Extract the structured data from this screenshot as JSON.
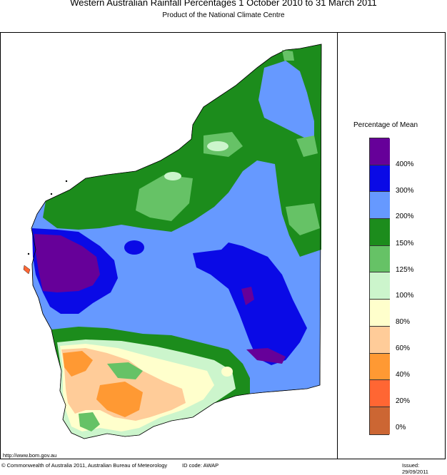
{
  "header": {
    "title": "Western Australian Rainfall Percentages 1 October 2010 to 31 March 2011",
    "subtitle": "Product of the National Climate Centre"
  },
  "legend": {
    "title": "Percentage of Mean",
    "bands": [
      {
        "label": "",
        "color": "#660099"
      },
      {
        "label": "400%",
        "color": "#0a0ae6"
      },
      {
        "label": "300%",
        "color": "#6699ff"
      },
      {
        "label": "200%",
        "color": "#1c8c1c"
      },
      {
        "label": "150%",
        "color": "#66c266"
      },
      {
        "label": "125%",
        "color": "#ccf5cc"
      },
      {
        "label": "100%",
        "color": "#ffffcc"
      },
      {
        "label": "80%",
        "color": "#ffcc99"
      },
      {
        "label": "60%",
        "color": "#ff9933"
      },
      {
        "label": "40%",
        "color": "#ff6633"
      },
      {
        "label": "20%",
        "color": "#cc6633"
      },
      {
        "label": "0%",
        "color": ""
      }
    ]
  },
  "footer": {
    "url": "http://www.bom.gov.au",
    "copyright": "© Commonwealth of Australia 2011, Australian Bureau of Meteorology",
    "id_code": "ID code: AWAP",
    "issued": "Issued: 29/09/2011"
  }
}
